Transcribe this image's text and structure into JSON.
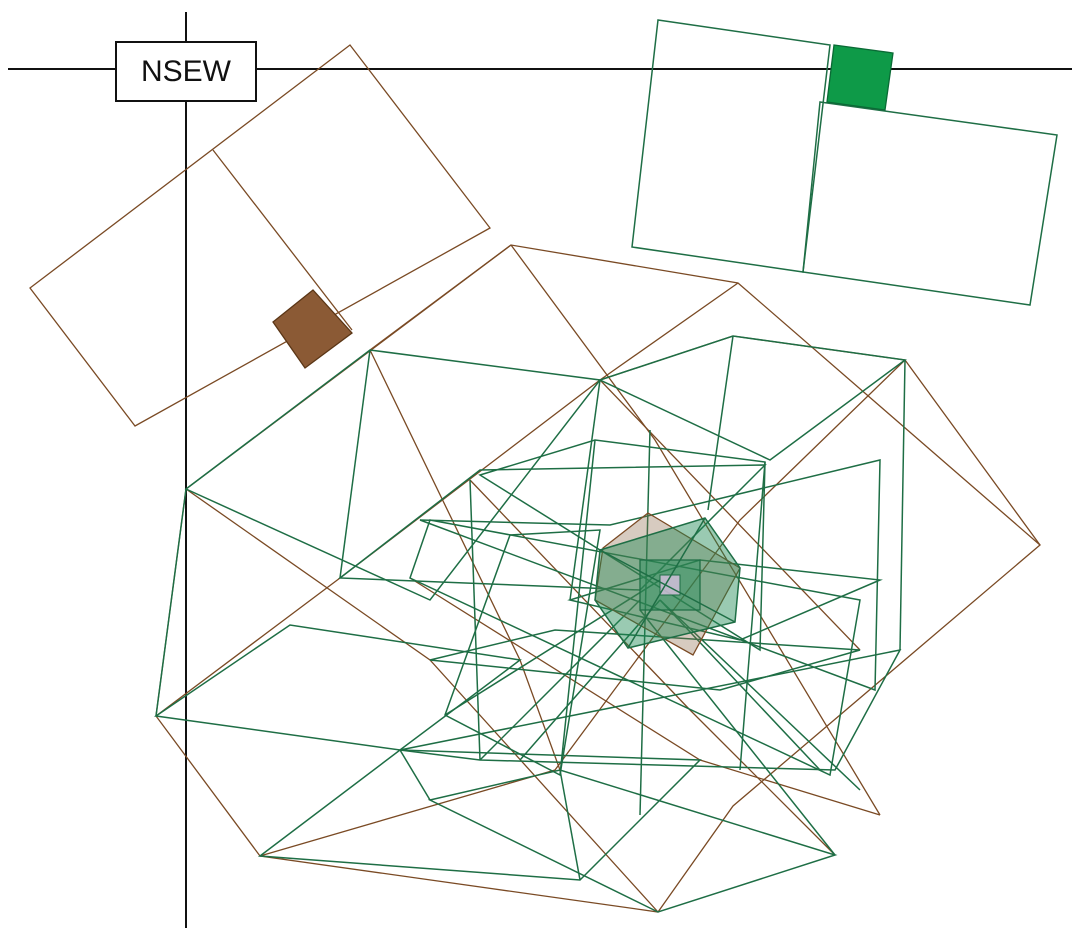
{
  "label": {
    "text": "NSEW"
  }
}
